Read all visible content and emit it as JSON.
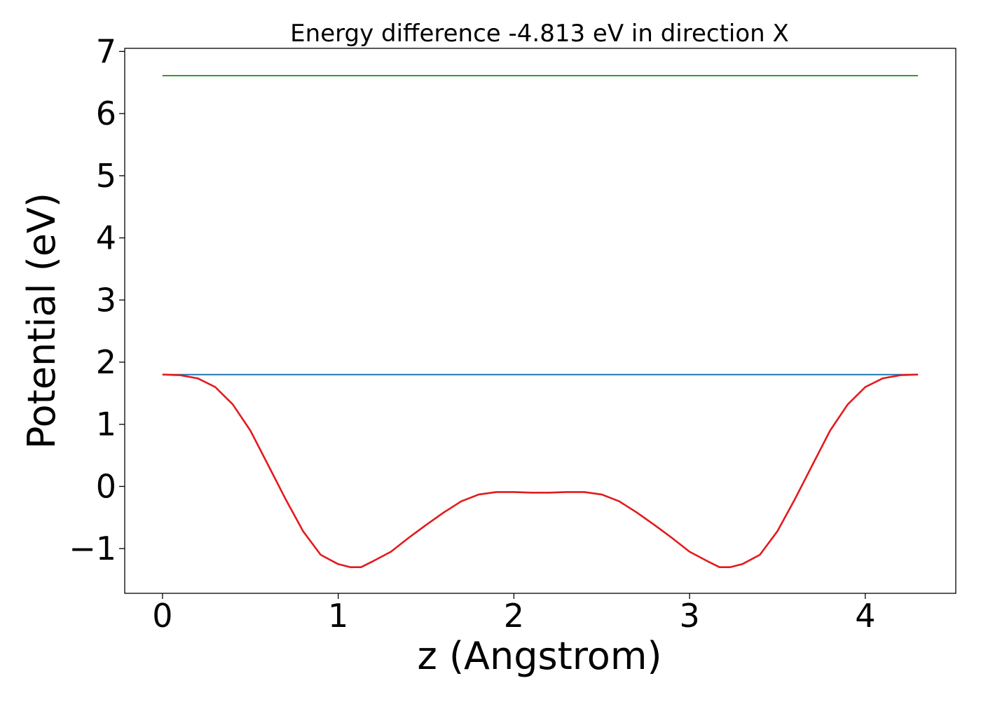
{
  "chart_data": {
    "type": "line",
    "title": "Energy difference -4.813 eV in direction X",
    "xlabel": "z (Angstrom)",
    "ylabel": "Potential (eV)",
    "xlim": [
      -0.215,
      4.515
    ],
    "ylim": [
      -1.72,
      7.05
    ],
    "xticks": [
      0,
      1,
      2,
      3,
      4
    ],
    "xtick_labels": [
      "0",
      "1",
      "2",
      "3",
      "4"
    ],
    "yticks": [
      -1,
      0,
      1,
      2,
      3,
      4,
      5,
      6,
      7
    ],
    "ytick_labels": [
      "−1",
      "0",
      "1",
      "2",
      "3",
      "4",
      "5",
      "6",
      "7"
    ],
    "grid": false,
    "series": [
      {
        "color": "#2ca02c",
        "x": [
          0,
          4.3
        ],
        "y": [
          6.61,
          6.61
        ]
      },
      {
        "color": "#1f77b4",
        "x": [
          0,
          4.3
        ],
        "y": [
          1.8,
          1.8
        ]
      },
      {
        "color": "#e31a1c",
        "x": [
          0,
          0.1,
          0.2,
          0.3,
          0.4,
          0.5,
          0.6,
          0.7,
          0.8,
          0.9,
          1.0,
          1.07,
          1.13,
          1.2,
          1.3,
          1.4,
          1.5,
          1.6,
          1.7,
          1.8,
          1.9,
          2.0,
          2.1,
          2.15,
          2.2,
          2.3,
          2.4,
          2.5,
          2.6,
          2.7,
          2.8,
          2.9,
          3.0,
          3.1,
          3.17,
          3.23,
          3.3,
          3.4,
          3.5,
          3.6,
          3.7,
          3.8,
          3.9,
          4.0,
          4.1,
          4.2,
          4.3
        ],
        "y": [
          1.8,
          1.79,
          1.74,
          1.6,
          1.32,
          0.9,
          0.35,
          -0.2,
          -0.72,
          -1.1,
          -1.25,
          -1.3,
          -1.3,
          -1.2,
          -1.05,
          -0.83,
          -0.62,
          -0.42,
          -0.24,
          -0.13,
          -0.09,
          -0.09,
          -0.1,
          -0.1,
          -0.1,
          -0.09,
          -0.09,
          -0.13,
          -0.24,
          -0.42,
          -0.62,
          -0.83,
          -1.05,
          -1.2,
          -1.3,
          -1.3,
          -1.25,
          -1.1,
          -0.72,
          -0.2,
          0.35,
          0.9,
          1.32,
          1.6,
          1.74,
          1.79,
          1.8
        ]
      }
    ]
  }
}
